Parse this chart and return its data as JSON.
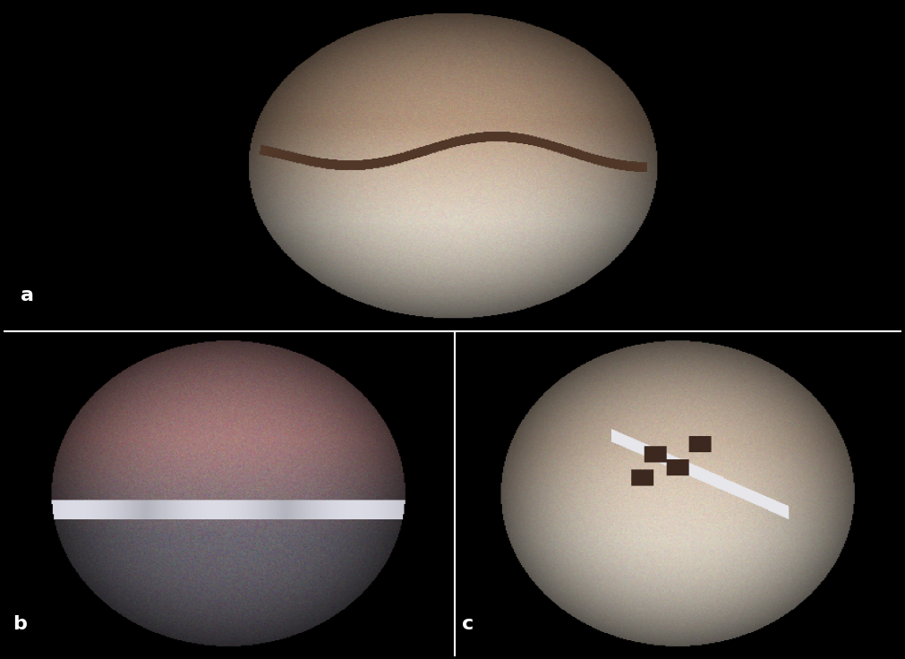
{
  "background_color": "#000000",
  "label_color": "#ffffff",
  "label_fontsize": 16,
  "label_fontweight": "bold",
  "labels": [
    "a",
    "b",
    "c"
  ],
  "figure_width": 10.11,
  "figure_height": 7.36,
  "separator_color": "#ffffff",
  "separator_linewidth": 1.5,
  "label_bg_color": "#000000",
  "panel_a": {
    "upper_color": [
      185,
      155,
      130
    ],
    "lower_color": [
      230,
      220,
      205
    ],
    "split": 0.52
  },
  "panel_b": {
    "upper_color": [
      175,
      130,
      130
    ],
    "lower_color": [
      110,
      105,
      115
    ],
    "split": 0.48
  },
  "panel_c": {
    "upper_color": [
      210,
      190,
      170
    ],
    "lower_color": [
      225,
      215,
      200
    ],
    "split": 0.5
  }
}
